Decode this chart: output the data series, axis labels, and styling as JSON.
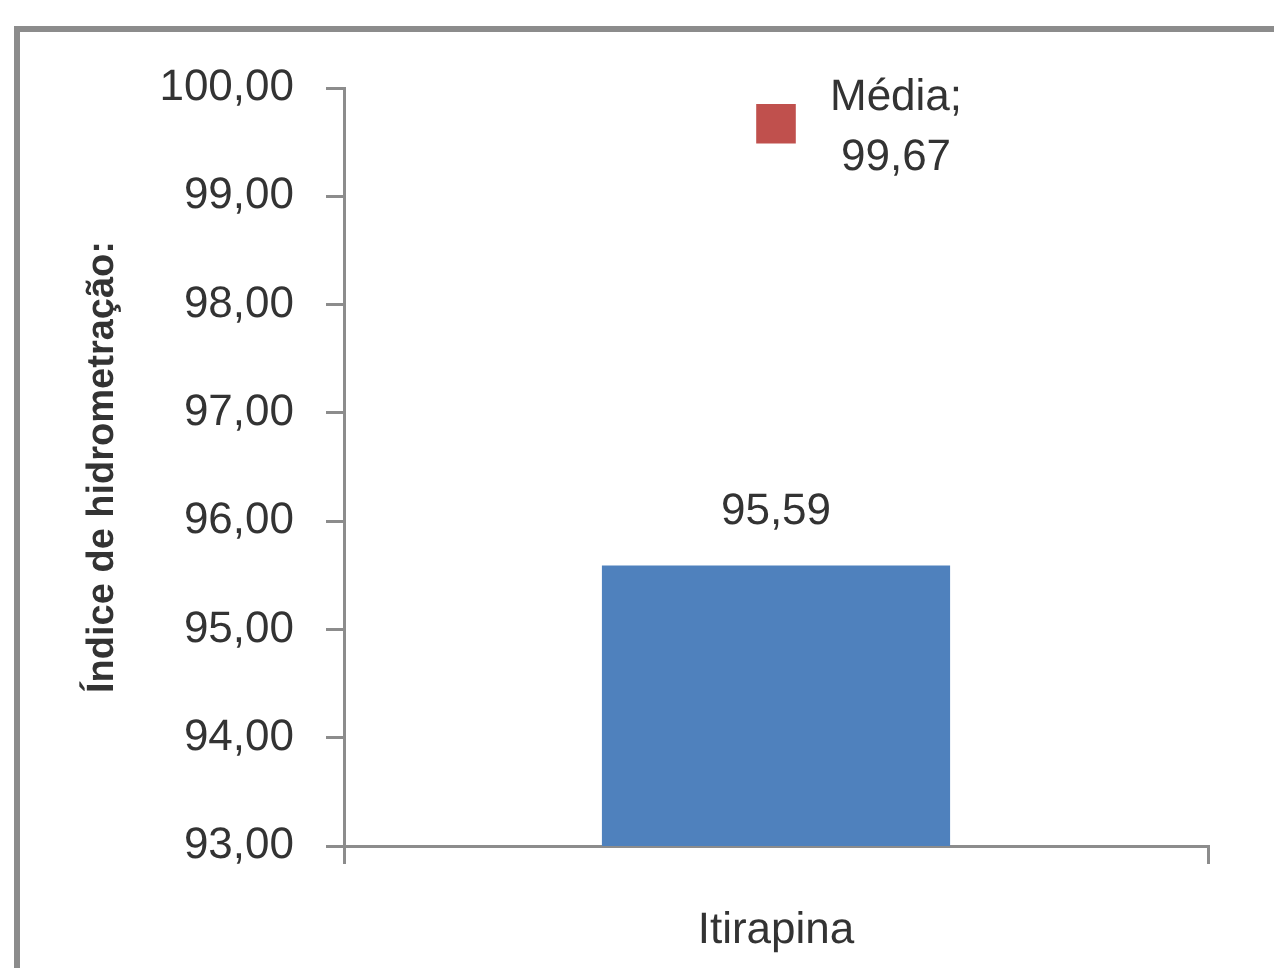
{
  "chart_data": {
    "type": "bar",
    "ylabel": "Índice de hidrometração:",
    "categories": [
      "Itirapina"
    ],
    "series": [
      {
        "color": "#4f81bd",
        "values": [
          95.59
        ],
        "value_labels": [
          "95,59"
        ]
      },
      {
        "type": "scatter",
        "name": "Média;",
        "x": [
          "Itirapina"
        ],
        "color": "#c0504d",
        "values": [
          99.67
        ],
        "marker": "square",
        "value_labels": [
          "99,67"
        ]
      }
    ],
    "ylim": [
      93,
      100
    ],
    "yticks": [
      {
        "value": 93,
        "label": "93,00"
      },
      {
        "value": 94,
        "label": "94,00"
      },
      {
        "value": 95,
        "label": "95,00"
      },
      {
        "value": 96,
        "label": "96,00"
      },
      {
        "value": 97,
        "label": "97,00"
      },
      {
        "value": 98,
        "label": "98,00"
      },
      {
        "value": 99,
        "label": "99,00"
      },
      {
        "value": 100,
        "label": "100,00"
      }
    ],
    "grid": false,
    "legend": false
  }
}
